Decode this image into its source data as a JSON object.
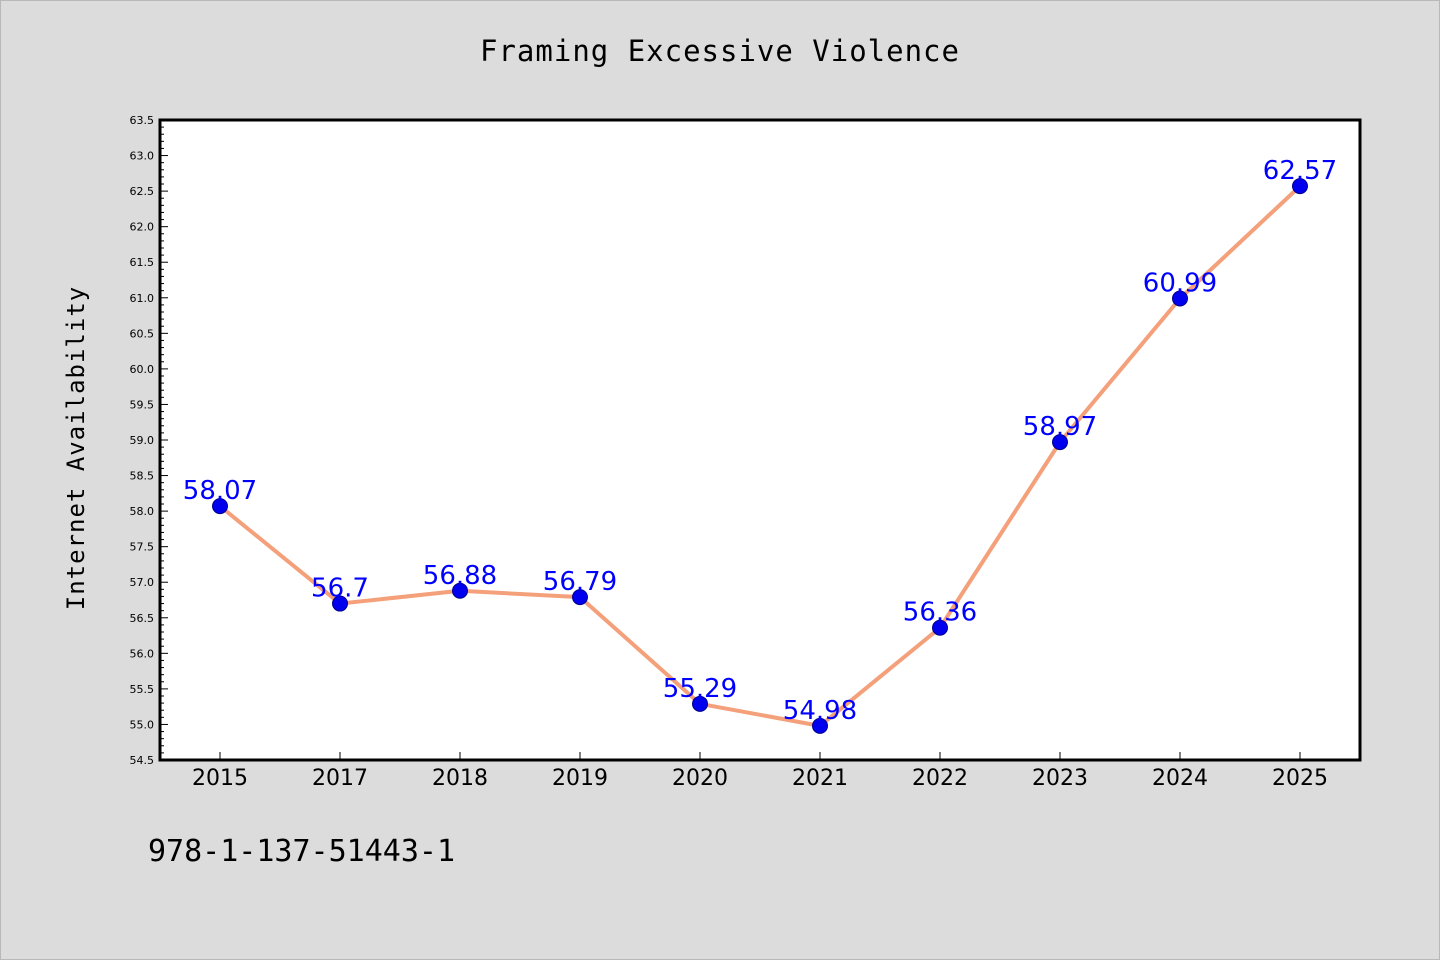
{
  "chart_data": {
    "type": "line",
    "title": "Framing Excessive Violence",
    "xlabel": "",
    "ylabel": "Internet Availability",
    "categories": [
      "2015",
      "2017",
      "2018",
      "2019",
      "2020",
      "2021",
      "2022",
      "2023",
      "2024",
      "2025"
    ],
    "values": [
      58.07,
      56.7,
      56.88,
      56.79,
      55.29,
      54.98,
      56.36,
      58.97,
      60.99,
      62.57
    ],
    "value_labels": [
      "58.07",
      "56.7",
      "56.88",
      "56.79",
      "55.29",
      "54.98",
      "56.36",
      "58.97",
      "60.99",
      "62.57"
    ],
    "ylim": [
      54.5,
      63.5
    ],
    "yticks": [
      "54.5",
      "55.0",
      "55.5",
      "56.0",
      "56.5",
      "57.0",
      "57.5",
      "58.0",
      "58.5",
      "59.0",
      "59.5",
      "60.0",
      "60.5",
      "61.0",
      "61.5",
      "62.0",
      "62.5",
      "63.0",
      "63.5"
    ],
    "grid": false,
    "line_color": "#f4a07a",
    "marker_color": "#0000ee",
    "label_color": "#0000ff"
  },
  "footer": {
    "isbn": "978-1-137-51443-1"
  }
}
